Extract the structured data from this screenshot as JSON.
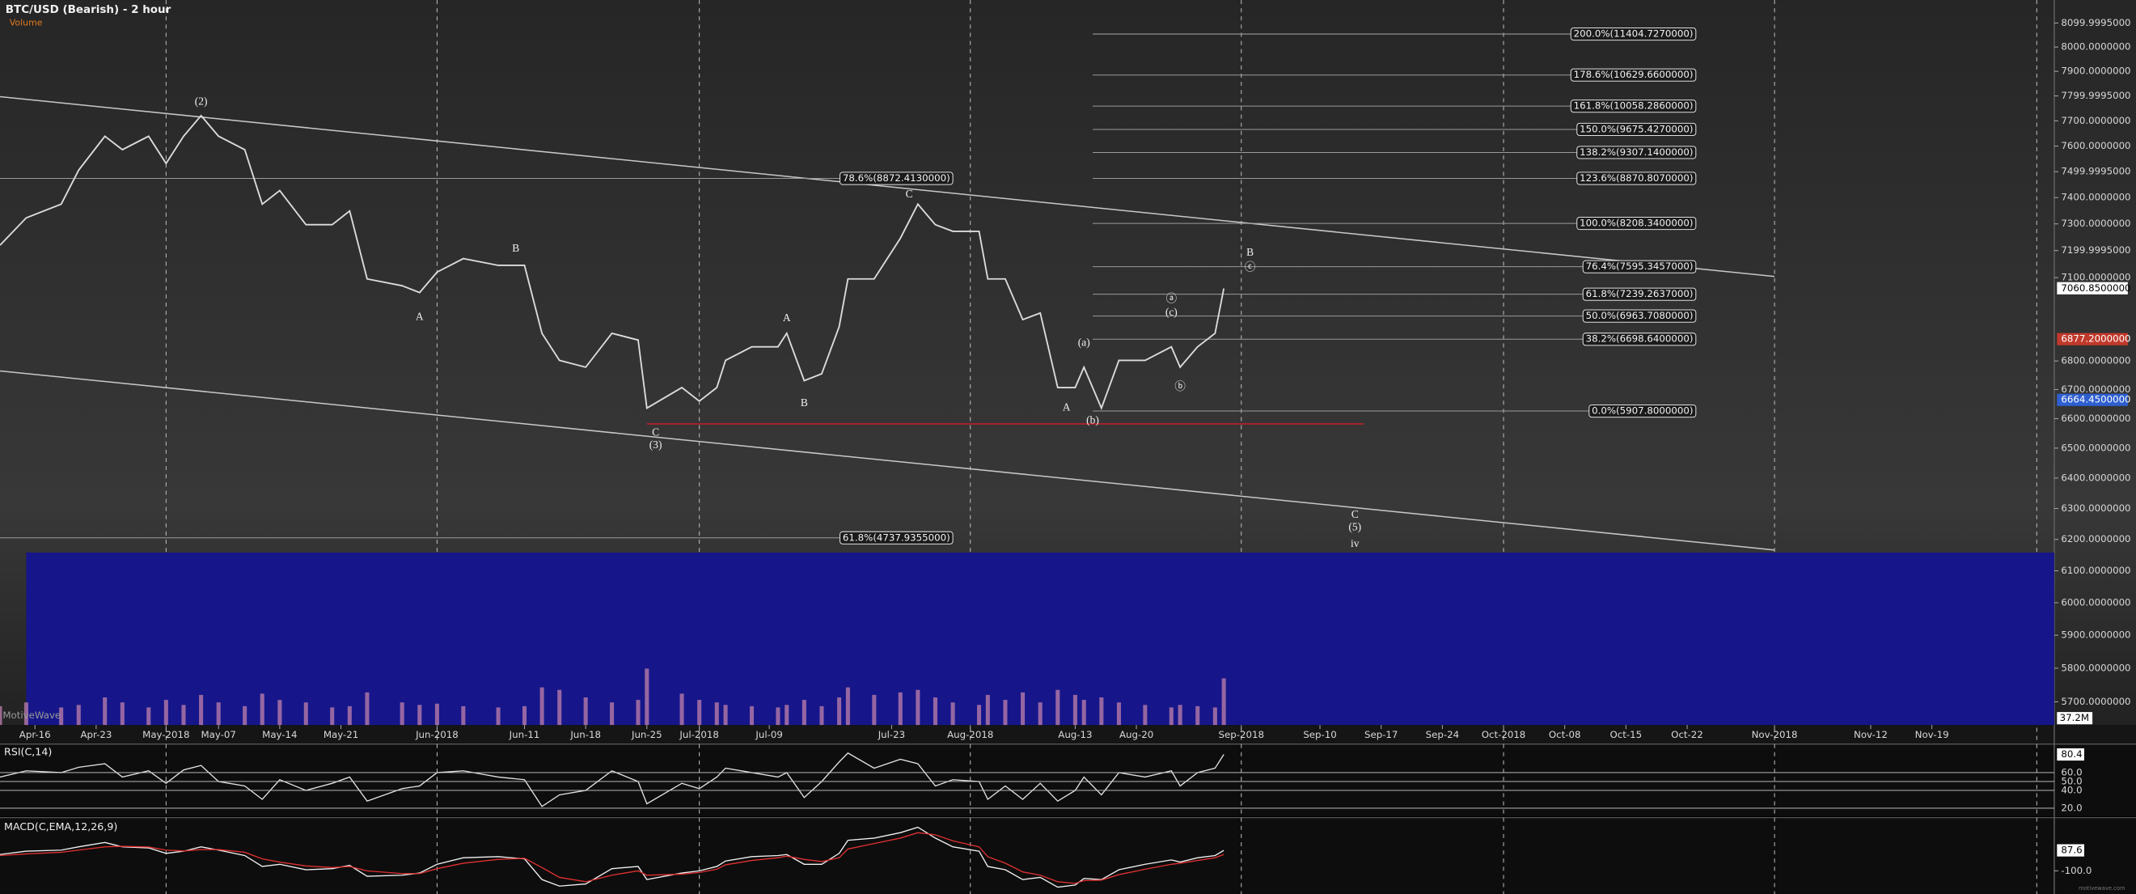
{
  "chart_data": [
    {
      "type": "line",
      "title": "BTC/USD (Bearish) - 2 hour",
      "subtitle": "Volume",
      "watermark": "MotiveWave",
      "log_scale": true,
      "xlim": [
        "2018-04-12",
        "2018-12-03"
      ],
      "ylim": [
        5632,
        8197
      ],
      "x": [
        "2018-04-12",
        "2018-04-15",
        "2018-04-19",
        "2018-04-21",
        "2018-04-24",
        "2018-04-26",
        "2018-04-29",
        "2018-05-01",
        "2018-05-03",
        "2018-05-05",
        "2018-05-07",
        "2018-05-10",
        "2018-05-12",
        "2018-05-14",
        "2018-05-17",
        "2018-05-20",
        "2018-05-22",
        "2018-05-24",
        "2018-05-28",
        "2018-05-30",
        "2018-06-01",
        "2018-06-04",
        "2018-06-08",
        "2018-06-11",
        "2018-06-13",
        "2018-06-15",
        "2018-06-18",
        "2018-06-21",
        "2018-06-24",
        "2018-06-25",
        "2018-06-29",
        "2018-07-01",
        "2018-07-03",
        "2018-07-04",
        "2018-07-07",
        "2018-07-10",
        "2018-07-11",
        "2018-07-13",
        "2018-07-15",
        "2018-07-17",
        "2018-07-18",
        "2018-07-21",
        "2018-07-24",
        "2018-07-26",
        "2018-07-28",
        "2018-07-30",
        "2018-08-02",
        "2018-08-03",
        "2018-08-05",
        "2018-08-07",
        "2018-08-09",
        "2018-08-11",
        "2018-08-13",
        "2018-08-14",
        "2018-08-16",
        "2018-08-18",
        "2018-08-21",
        "2018-08-24",
        "2018-08-25",
        "2018-08-27",
        "2018-08-29",
        "2018-08-30"
      ],
      "series": [
        {
          "color": "#dcdcdc",
          "values": [
            7220,
            7323,
            7375,
            7506,
            7639,
            7586,
            7639,
            7532,
            7639,
            7721,
            7639,
            7586,
            7375,
            7427,
            7297,
            7297,
            7349,
            7095,
            7070,
            7045,
            7120,
            7170,
            7145,
            7145,
            6898,
            6802,
            6778,
            6898,
            6874,
            6636,
            6707,
            6660,
            6707,
            6802,
            6850,
            6850,
            6898,
            6731,
            6755,
            6922,
            7095,
            7095,
            7246,
            7375,
            7297,
            7272,
            7272,
            7095,
            7095,
            6947,
            6971,
            6707,
            6707,
            6778,
            6636,
            6802,
            6802,
            6850,
            6778,
            6850,
            6898,
            7060
          ]
        }
      ],
      "xticks": [
        {
          "value": "2018-04-16",
          "label": "Apr-16"
        },
        {
          "value": "2018-04-23",
          "label": "Apr-23"
        },
        {
          "value": "2018-05-01",
          "label": "May-2018"
        },
        {
          "value": "2018-05-07",
          "label": "May-07"
        },
        {
          "value": "2018-05-14",
          "label": "May-14"
        },
        {
          "value": "2018-05-21",
          "label": "May-21"
        },
        {
          "value": "2018-06-01",
          "label": "Jun-2018"
        },
        {
          "value": "2018-06-11",
          "label": "Jun-11"
        },
        {
          "value": "2018-06-18",
          "label": "Jun-18"
        },
        {
          "value": "2018-06-25",
          "label": "Jun-25"
        },
        {
          "value": "2018-07-01",
          "label": "Jul-2018"
        },
        {
          "value": "2018-07-09",
          "label": "Jul-09"
        },
        {
          "value": "2018-07-23",
          "label": "Jul-23"
        },
        {
          "value": "2018-08-01",
          "label": "Aug-2018"
        },
        {
          "value": "2018-08-13",
          "label": "Aug-13"
        },
        {
          "value": "2018-08-20",
          "label": "Aug-20"
        },
        {
          "value": "2018-09-01",
          "label": "Sep-2018"
        },
        {
          "value": "2018-09-10",
          "label": "Sep-10"
        },
        {
          "value": "2018-09-17",
          "label": "Sep-17"
        },
        {
          "value": "2018-09-24",
          "label": "Sep-24"
        },
        {
          "value": "2018-10-01",
          "label": "Oct-2018"
        },
        {
          "value": "2018-10-08",
          "label": "Oct-08"
        },
        {
          "value": "2018-10-15",
          "label": "Oct-15"
        },
        {
          "value": "2018-10-22",
          "label": "Oct-22"
        },
        {
          "value": "2018-11-01",
          "label": "Nov-2018"
        },
        {
          "value": "2018-11-12",
          "label": "Nov-12"
        },
        {
          "value": "2018-11-19",
          "label": "Nov-19"
        }
      ],
      "x_gridlines": [
        "2018-05-01",
        "2018-06-01",
        "2018-07-01",
        "2018-08-01",
        "2018-09-01",
        "2018-10-01",
        "2018-11-01",
        "2018-12-01"
      ],
      "yticks": [
        {
          "value": 8099.9995,
          "label": "8099.9995000"
        },
        {
          "value": 8000,
          "label": "8000.0000000"
        },
        {
          "value": 7900,
          "label": "7900.0000000"
        },
        {
          "value": 7799.9995,
          "label": "7799.9995000"
        },
        {
          "value": 7700,
          "label": "7700.0000000"
        },
        {
          "value": 7600,
          "label": "7600.0000000"
        },
        {
          "value": 7499.9995,
          "label": "7499.9995000"
        },
        {
          "value": 7400,
          "label": "7400.0000000"
        },
        {
          "value": 7300,
          "label": "7300.0000000"
        },
        {
          "value": 7199.9995,
          "label": "7199.9995000"
        },
        {
          "value": 7100,
          "label": "7100.0000000"
        },
        {
          "value": 6800,
          "label": "6800.0000000"
        },
        {
          "value": 6700,
          "label": "6700.0000000"
        },
        {
          "value": 6600,
          "label": "6600.0000000"
        },
        {
          "value": 6500,
          "label": "6500.0000000"
        },
        {
          "value": 6400,
          "label": "6400.0000000"
        },
        {
          "value": 6300,
          "label": "6300.0000000"
        },
        {
          "value": 6200,
          "label": "6200.0000000"
        },
        {
          "value": 6100,
          "label": "6100.0000000"
        },
        {
          "value": 6000,
          "label": "6000.0000000"
        },
        {
          "value": 5900,
          "label": "5900.0000000"
        },
        {
          "value": 5800,
          "label": "5800.0000000"
        },
        {
          "value": 5700,
          "label": "5700.0000000"
        }
      ],
      "price_markers": [
        {
          "value": 7060.85,
          "label": "7060.8500000",
          "color": "#ffffff"
        },
        {
          "value": 6877.2,
          "label": "6877.2000000",
          "color": "#c0392b"
        },
        {
          "value": 6664.45,
          "label": "6664.4500000",
          "color": "#2e5fd0"
        }
      ],
      "target_box": {
        "x": [
          "2018-04-15",
          "2018-12-03"
        ],
        "y": [
          6158,
          5632
        ],
        "color": "#16168a"
      },
      "volume": {
        "color": "#b77aa8",
        "ylim": [
          0,
          100
        ],
        "values": [
          15,
          18,
          14,
          16,
          22,
          18,
          14,
          20,
          16,
          24,
          18,
          15,
          25,
          20,
          18,
          14,
          15,
          26,
          18,
          16,
          17,
          15,
          14,
          15,
          30,
          28,
          22,
          18,
          20,
          45,
          25,
          20,
          18,
          16,
          15,
          14,
          16,
          20,
          15,
          22,
          30,
          24,
          26,
          28,
          22,
          18,
          16,
          24,
          20,
          26,
          18,
          28,
          24,
          20,
          22,
          18,
          16,
          14,
          16,
          15,
          14,
          37.2
        ],
        "current": {
          "value": 37.2,
          "label": "37.2M"
        }
      },
      "trend_lines": [
        {
          "x": [
            "2018-04-12",
            "2018-11-01"
          ],
          "y": [
            7797,
            7104
          ],
          "color": "#c8c8c8"
        },
        {
          "x": [
            "2018-04-12",
            "2018-11-01"
          ],
          "y": [
            6765,
            6166
          ],
          "color": "#c8c8c8"
        },
        {
          "x": [
            "2018-06-25",
            "2018-09-15"
          ],
          "y": [
            6582,
            6582
          ],
          "color": "#c0202a"
        }
      ],
      "fib_levels": [
        {
          "label": "200.0%(11404.7270000)",
          "y": 8054,
          "x": [
            "2018-08-15",
            "2018-10-23"
          ]
        },
        {
          "label": "178.6%(10629.6600000)",
          "y": 7885,
          "x": [
            "2018-08-15",
            "2018-10-23"
          ]
        },
        {
          "label": "161.8%(10058.2860000)",
          "y": 7759,
          "x": [
            "2018-08-15",
            "2018-10-23"
          ]
        },
        {
          "label": "150.0%(9675.4270000)",
          "y": 7666,
          "x": [
            "2018-08-15",
            "2018-10-23"
          ]
        },
        {
          "label": "138.2%(9307.1400000)",
          "y": 7575,
          "x": [
            "2018-08-15",
            "2018-10-23"
          ]
        },
        {
          "label": "123.6%(8870.8070000)",
          "y": 7474,
          "x": [
            "2018-08-15",
            "2018-10-23"
          ]
        },
        {
          "label": "100.0%(8208.3400000)",
          "y": 7302,
          "x": [
            "2018-08-15",
            "2018-10-23"
          ]
        },
        {
          "label": "76.4%(7595.3457000)",
          "y": 7140,
          "x": [
            "2018-08-15",
            "2018-10-23"
          ]
        },
        {
          "label": "61.8%(7239.2637000)",
          "y": 7039,
          "x": [
            "2018-08-15",
            "2018-10-23"
          ]
        },
        {
          "label": "50.0%(6963.7080000)",
          "y": 6960,
          "x": [
            "2018-08-15",
            "2018-10-23"
          ]
        },
        {
          "label": "38.2%(6698.6400000)",
          "y": 6877,
          "x": [
            "2018-08-15",
            "2018-10-23"
          ]
        },
        {
          "label": "0.0%(5907.8000000)",
          "y": 6626,
          "x": [
            "2018-08-15",
            "2018-10-23"
          ]
        },
        {
          "label": "78.6%(8872.4130000)",
          "y": 7474,
          "x": [
            "2018-04-12",
            "2018-07-30"
          ]
        },
        {
          "label": "61.8%(4737.9355000)",
          "y": 6205,
          "x": [
            "2018-04-12",
            "2018-07-30"
          ]
        }
      ],
      "annotations": [
        {
          "text": "(2)",
          "x": "2018-05-05",
          "y": 7775
        },
        {
          "text": "B",
          "x": "2018-06-10",
          "y": 7205
        },
        {
          "text": "A",
          "x": "2018-05-30",
          "y": 6955
        },
        {
          "text": "C",
          "x": "2018-06-26",
          "y": 6551
        },
        {
          "text": "(3)",
          "x": "2018-06-26",
          "y": 6508
        },
        {
          "text": "A",
          "x": "2018-07-11",
          "y": 6950
        },
        {
          "text": "B",
          "x": "2018-07-13",
          "y": 6652
        },
        {
          "text": "C",
          "x": "2018-07-25",
          "y": 7411
        },
        {
          "text": "(a)",
          "x": "2018-08-14",
          "y": 6862
        },
        {
          "text": "A",
          "x": "2018-08-12",
          "y": 6636
        },
        {
          "text": "(b)",
          "x": "2018-08-15",
          "y": 6592
        },
        {
          "text": "ⓐ",
          "x": "2018-08-24",
          "y": 7019
        },
        {
          "text": "(c)",
          "x": "2018-08-24",
          "y": 6971
        },
        {
          "text": "ⓑ",
          "x": "2018-08-25",
          "y": 6707
        },
        {
          "text": "B",
          "x": "2018-09-02",
          "y": 7190
        },
        {
          "text": "ⓒ",
          "x": "2018-09-02",
          "y": 7134
        },
        {
          "text": "C",
          "x": "2018-09-14",
          "y": 6278
        },
        {
          "text": "(5)",
          "x": "2018-09-14",
          "y": 6237
        },
        {
          "text": "iv",
          "x": "2018-09-14",
          "y": 6184
        }
      ]
    },
    {
      "type": "line",
      "title": "RSI(C,14)",
      "ylim": [
        14,
        89
      ],
      "grid": true,
      "yticks": [
        {
          "value": 60,
          "label": "60.0"
        },
        {
          "value": 50,
          "label": "50.0"
        },
        {
          "value": 40,
          "label": "40.0"
        },
        {
          "value": 20,
          "label": "20.0"
        }
      ],
      "current": 80.4,
      "series": [
        {
          "color": "#e0e0e0",
          "values": [
            55,
            62,
            60,
            66,
            70,
            55,
            62,
            48,
            63,
            68,
            50,
            45,
            30,
            52,
            40,
            48,
            55,
            28,
            42,
            45,
            60,
            62,
            55,
            52,
            22,
            35,
            40,
            62,
            50,
            25,
            48,
            42,
            55,
            65,
            60,
            55,
            60,
            32,
            50,
            72,
            82,
            65,
            75,
            70,
            45,
            52,
            50,
            30,
            45,
            30,
            48,
            28,
            40,
            55,
            35,
            60,
            55,
            62,
            45,
            60,
            65,
            80.4
          ]
        }
      ]
    },
    {
      "type": "line",
      "title": "MACD(C,EMA,12,26,9)",
      "credit": "motivewave.com",
      "ylim": [
        -312,
        350
      ],
      "yticks": [
        {
          "value": -100,
          "label": "-100.0"
        }
      ],
      "current": 87.6,
      "series": [
        {
          "color": "#f2f2f2",
          "values": [
            50,
            80,
            90,
            120,
            160,
            120,
            110,
            60,
            80,
            120,
            90,
            40,
            -60,
            -40,
            -90,
            -80,
            -50,
            -150,
            -140,
            -120,
            -40,
            20,
            30,
            10,
            -180,
            -240,
            -220,
            -80,
            -60,
            -180,
            -120,
            -100,
            -60,
            -10,
            30,
            40,
            50,
            -40,
            -40,
            60,
            180,
            200,
            250,
            300,
            200,
            120,
            80,
            -60,
            -90,
            -180,
            -160,
            -250,
            -230,
            -170,
            -180,
            -90,
            -40,
            0,
            -20,
            20,
            40,
            87.6
          ]
        },
        {
          "color": "#e03030",
          "values": [
            40,
            55,
            70,
            90,
            120,
            125,
            118,
            90,
            82,
            95,
            95,
            70,
            10,
            -20,
            -55,
            -70,
            -60,
            -100,
            -125,
            -125,
            -80,
            -30,
            5,
            15,
            -70,
            -160,
            -200,
            -140,
            -100,
            -140,
            -130,
            -115,
            -85,
            -45,
            -5,
            20,
            35,
            5,
            -15,
            20,
            100,
            150,
            200,
            250,
            230,
            175,
            120,
            30,
            -30,
            -110,
            -140,
            -200,
            -215,
            -190,
            -185,
            -135,
            -85,
            -40,
            -30,
            -5,
            20,
            50
          ]
        }
      ]
    }
  ]
}
